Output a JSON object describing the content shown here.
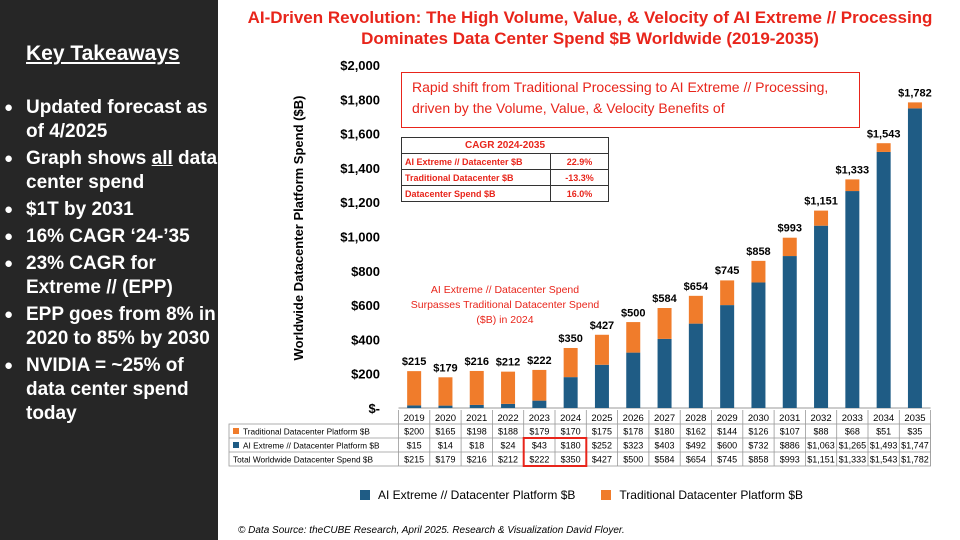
{
  "left_panel": {
    "title": "Key Takeaways",
    "bullets": [
      {
        "text": "Updated forecast as of 4/2025"
      },
      {
        "pre": "Graph shows ",
        "u": "all",
        "post": " data center spend"
      },
      {
        "text": "$1T by 2031"
      },
      {
        "text": "16% CAGR ‘24-’35"
      },
      {
        "text": "23% CAGR for Extreme // (EPP)"
      },
      {
        "text": "EPP goes from 8% in 2020 to 85% by 2030"
      },
      {
        "text": "NVIDIA = ~25% of data center spend today"
      }
    ]
  },
  "colors": {
    "ai": "#1f5c85",
    "trad": "#f07c2b",
    "accent": "#e8251b"
  },
  "note_text": "Rapid shift from Traditional Processing to AI Extreme // Processing, driven by the Volume, Value, & Velocity Benefits of",
  "cagr_table": {
    "title": "CAGR 2024-2035",
    "rows": [
      {
        "label": "AI Extreme // Datacenter $B",
        "value": "22.9%"
      },
      {
        "label": "Traditional Datacenter $B",
        "value": "-13.3%"
      },
      {
        "label": "Datacenter Spend $B",
        "value": "16.0%"
      }
    ]
  },
  "annotation": "AI Extreme // Datacenter Spend Surpasses Traditional Datacenter Spend ($B) in 2024",
  "source": "© Data Source: theCUBE Research, April 2025. Research & Visualization David Floyer.",
  "chart_data": {
    "type": "bar",
    "stacked": true,
    "title": "AI-Driven Revolution: The High Volume, Value, & Velocity of AI Extreme // Processing Dominates Data Center Spend $B Worldwide (2019-2035)",
    "ylabel": "Worldwide Datacenter Platform Spend ($B)",
    "ylim": [
      0,
      2000
    ],
    "yticks": [
      "$-",
      "$200",
      "$400",
      "$600",
      "$800",
      "$1,000",
      "$1,200",
      "$1,400",
      "$1,600",
      "$1,800",
      "$2,000"
    ],
    "categories": [
      "2019",
      "2020",
      "2021",
      "2022",
      "2023",
      "2024",
      "2025",
      "2026",
      "2027",
      "2028",
      "2029",
      "2030",
      "2031",
      "2032",
      "2033",
      "2034",
      "2035"
    ],
    "series": [
      {
        "name": "AI Extreme // Datacenter Platform $B",
        "values": [
          15,
          14,
          18,
          24,
          43,
          180,
          252,
          323,
          403,
          492,
          600,
          732,
          886,
          1063,
          1265,
          1493,
          1747
        ]
      },
      {
        "name": "Traditional Datacenter Platform $B",
        "values": [
          200,
          165,
          198,
          188,
          179,
          170,
          175,
          178,
          180,
          162,
          144,
          126,
          107,
          88,
          68,
          51,
          35
        ]
      }
    ],
    "totals": [
      215,
      179,
      216,
      212,
      222,
      350,
      427,
      500,
      584,
      654,
      745,
      858,
      993,
      1151,
      1333,
      1543,
      1782
    ],
    "total_labels": [
      "$215",
      "$179",
      "$216",
      "$212",
      "$222",
      "$350",
      "$427",
      "$500",
      "$584",
      "$654",
      "$745",
      "$858",
      "$993",
      "$1,151",
      "$1,333",
      "$1,543",
      "$1,782"
    ],
    "table": {
      "rows": [
        {
          "label": "Traditional Datacenter Platform $B",
          "values": [
            "$200",
            "$165",
            "$198",
            "$188",
            "$179",
            "$170",
            "$175",
            "$178",
            "$180",
            "$162",
            "$144",
            "$126",
            "$107",
            "$88",
            "$68",
            "$51",
            "$35"
          ]
        },
        {
          "label": "AI Extreme // Datacenter Platform $B",
          "values": [
            "$15",
            "$14",
            "$18",
            "$24",
            "$43",
            "$180",
            "$252",
            "$323",
            "$403",
            "$492",
            "$600",
            "$732",
            "$886",
            "$1,063",
            "$1,265",
            "$1,493",
            "$1,747"
          ]
        },
        {
          "label": "Total Worldwide Datacenter Spend $B",
          "values": [
            "$215",
            "$179",
            "$216",
            "$212",
            "$222",
            "$350",
            "$427",
            "$500",
            "$584",
            "$654",
            "$745",
            "$858",
            "$993",
            "$1,151",
            "$1,333",
            "$1,543",
            "$1,782"
          ]
        }
      ]
    },
    "legend": {
      "position": "bottom",
      "items": [
        "AI Extreme // Datacenter Platform $B",
        "Traditional Datacenter Platform $B"
      ]
    }
  }
}
